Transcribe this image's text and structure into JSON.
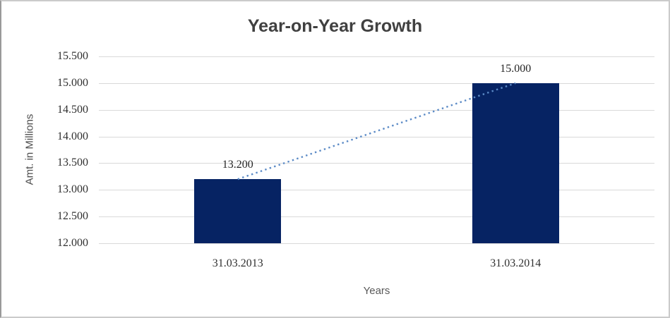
{
  "window": {
    "background": "#ffffff",
    "border_color": "#cbcbcb"
  },
  "chart_data": {
    "type": "bar",
    "title": "Year-on-Year Growth",
    "xlabel": "Years",
    "ylabel": "Amt. in Millions",
    "categories": [
      "31.03.2013",
      "31.03.2014"
    ],
    "values": [
      13.2,
      15.0
    ],
    "data_labels": [
      "13.200",
      "15.000"
    ],
    "y_ticks": [
      {
        "value": 12.0,
        "label": "12.000"
      },
      {
        "value": 12.5,
        "label": "12.500"
      },
      {
        "value": 13.0,
        "label": "13.000"
      },
      {
        "value": 13.5,
        "label": "13.500"
      },
      {
        "value": 14.0,
        "label": "14.000"
      },
      {
        "value": 14.5,
        "label": "14.500"
      },
      {
        "value": 15.0,
        "label": "15.000"
      },
      {
        "value": 15.5,
        "label": "15.500"
      }
    ],
    "ylim": [
      12.0,
      15.5
    ],
    "grid": "horizontal",
    "legend": "none",
    "colors": {
      "bar": "#062363",
      "gridline": "#d9d9d9",
      "trendline": "#5b8ac6",
      "title_text": "#404040",
      "label_text": "#262626"
    },
    "trendline": {
      "type": "linear",
      "style": "dotted",
      "connects": "bar tops",
      "from_value": 13.2,
      "to_value": 15.0
    }
  }
}
